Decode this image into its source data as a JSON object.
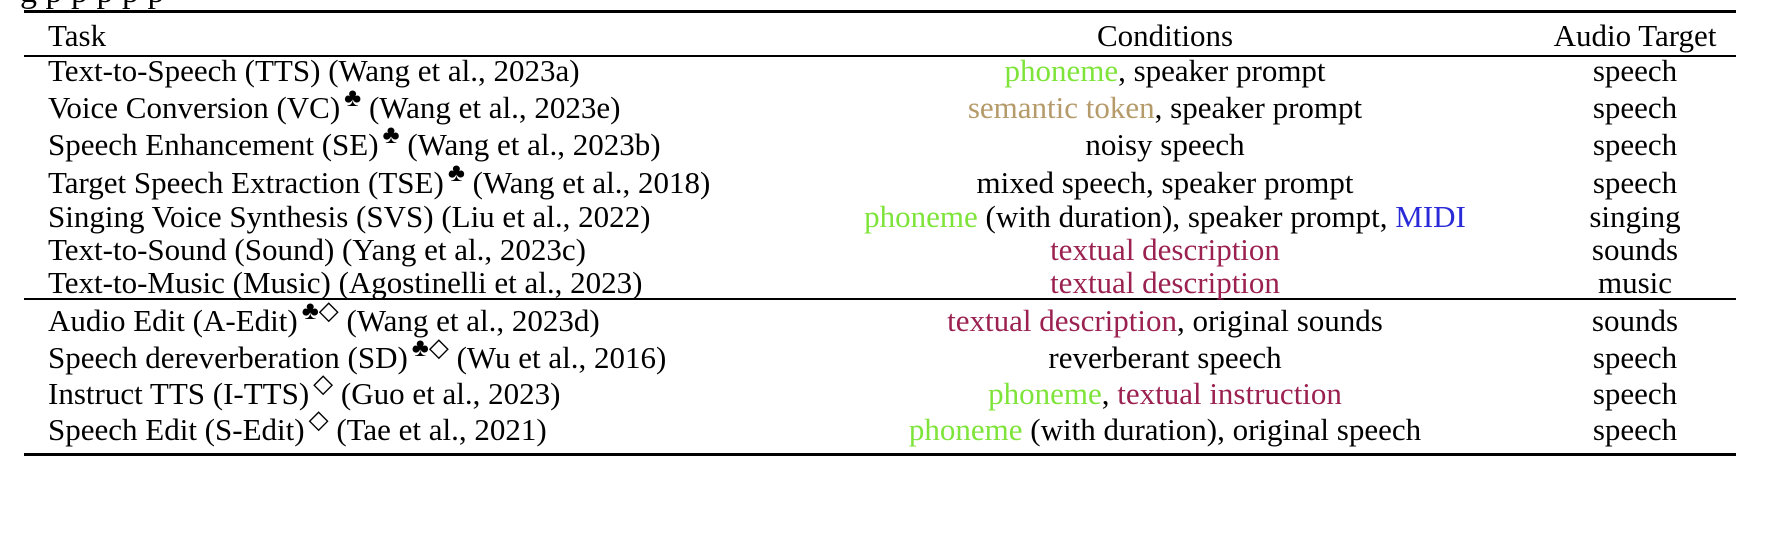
{
  "caption_fragment": "g       p      p       p                                 p                                                          p",
  "colors": {
    "phoneme": "#7fe43a",
    "semantic_token": "#b59a6a",
    "textual": "#9b2150",
    "midi": "#2a2ad8",
    "text": "#000000"
  },
  "table": {
    "headers": {
      "task": "Task",
      "conditions": "Conditions",
      "target": "Audio Target"
    },
    "rows": [
      {
        "task": "Text-to-Speech (TTS)",
        "marks": "",
        "citation": " (Wang et al., 2023a)",
        "conditions": [
          {
            "text": "phoneme",
            "color": "phoneme"
          },
          {
            "text": ", speaker prompt",
            "color": "text"
          }
        ],
        "target": "speech"
      },
      {
        "task": "Voice Conversion (VC)",
        "marks": "♣",
        "citation": " (Wang et al., 2023e)",
        "conditions": [
          {
            "text": "semantic token",
            "color": "semantic_token"
          },
          {
            "text": ", speaker prompt",
            "color": "text"
          }
        ],
        "target": "speech"
      },
      {
        "task": "Speech Enhancement (SE)",
        "marks": "♣",
        "citation": " (Wang et al., 2023b)",
        "conditions": [
          {
            "text": "noisy speech",
            "color": "text"
          }
        ],
        "target": "speech"
      },
      {
        "task": "Target Speech Extraction (TSE)",
        "marks": "♣",
        "citation": " (Wang et al., 2018)",
        "conditions": [
          {
            "text": "mixed speech, speaker prompt",
            "color": "text"
          }
        ],
        "target": "speech"
      },
      {
        "task": "Singing Voice Synthesis (SVS)",
        "marks": "",
        "citation": " (Liu et al., 2022)",
        "conditions": [
          {
            "text": "phoneme",
            "color": "phoneme"
          },
          {
            "text": " (with duration), speaker prompt, ",
            "color": "text"
          },
          {
            "text": "MIDI",
            "color": "midi"
          }
        ],
        "target": "singing"
      },
      {
        "task": "Text-to-Sound (Sound)",
        "marks": "",
        "citation": " (Yang et al., 2023c)",
        "conditions": [
          {
            "text": "textual description",
            "color": "textual"
          }
        ],
        "target": "sounds"
      },
      {
        "task": "Text-to-Music (Music)",
        "marks": "",
        "citation": " (Agostinelli et al., 2023)",
        "conditions": [
          {
            "text": "textual description",
            "color": "textual"
          }
        ],
        "target": "music"
      },
      {
        "task": "Audio Edit (A-Edit)",
        "marks": "♣◇",
        "citation": " (Wang et al., 2023d)",
        "conditions": [
          {
            "text": "textual description",
            "color": "textual"
          },
          {
            "text": ", original sounds",
            "color": "text"
          }
        ],
        "target": "sounds"
      },
      {
        "task": "Speech dereverberation (SD)",
        "marks": "♣◇",
        "citation": " (Wu et al., 2016)",
        "conditions": [
          {
            "text": "reverberant speech",
            "color": "text"
          }
        ],
        "target": "speech"
      },
      {
        "task": "Instruct TTS (I-TTS)",
        "marks": "◇",
        "citation": " (Guo et al., 2023)",
        "conditions": [
          {
            "text": "phoneme",
            "color": "phoneme"
          },
          {
            "text": ", ",
            "color": "text"
          },
          {
            "text": "textual instruction",
            "color": "textual"
          }
        ],
        "target": "speech"
      },
      {
        "task": "Speech Edit (S-Edit)",
        "marks": "◇",
        "citation": " (Tae et al., 2021)",
        "conditions": [
          {
            "text": "phoneme",
            "color": "phoneme"
          },
          {
            "text": " (with duration), original speech",
            "color": "text"
          }
        ],
        "target": "speech"
      }
    ]
  }
}
